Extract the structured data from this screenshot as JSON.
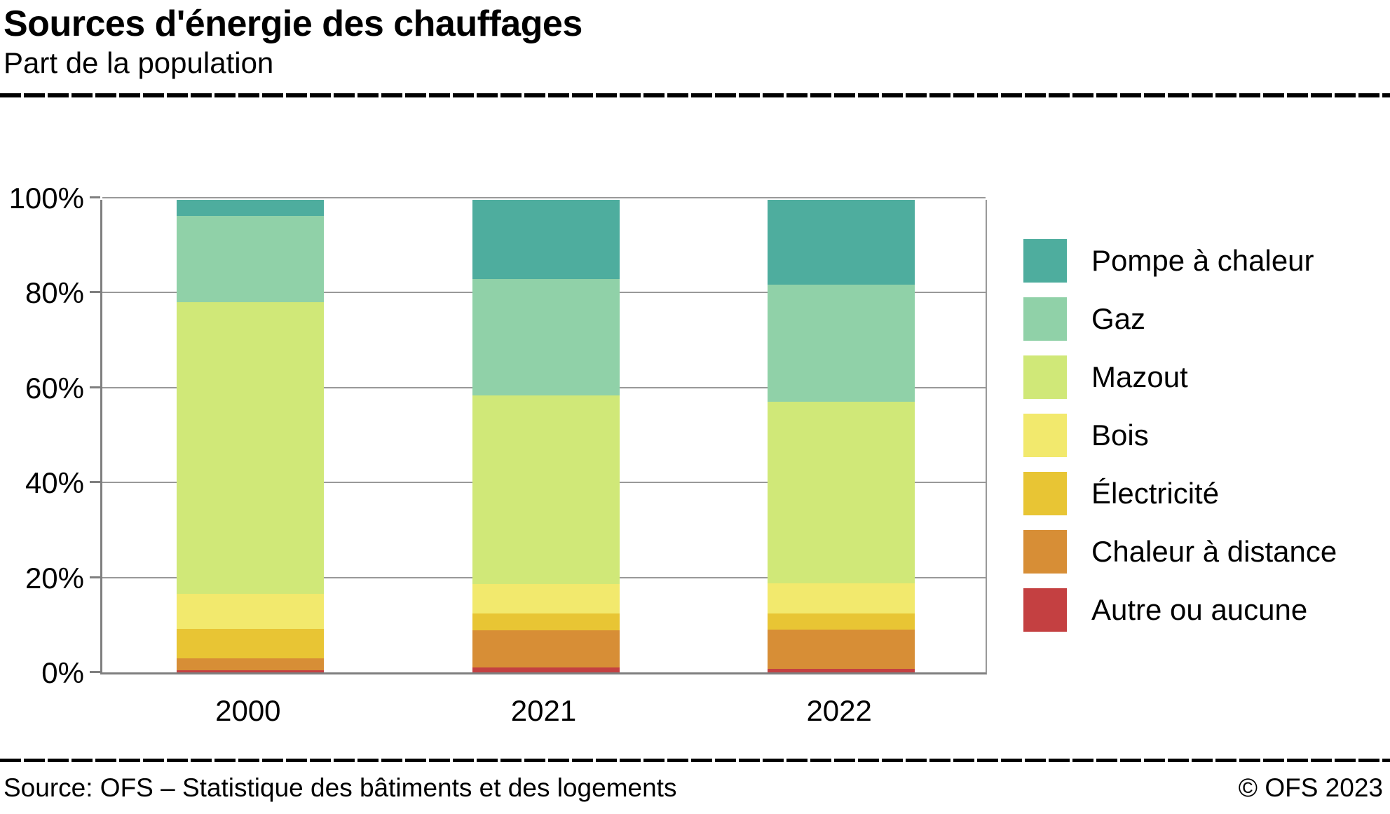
{
  "header": {
    "title": "Sources d'énergie des chauffages",
    "subtitle": "Part de la population"
  },
  "chart_data": {
    "type": "bar",
    "stacked": true,
    "title": "Sources d'énergie des chauffages",
    "subtitle": "Part de la population",
    "categories": [
      "2000",
      "2021",
      "2022"
    ],
    "series": [
      {
        "name": "Pompe à chaleur",
        "color": "#4ead9e",
        "values": [
          3.4,
          16.7,
          17.9
        ]
      },
      {
        "name": "Gaz",
        "color": "#90d1a8",
        "values": [
          18.3,
          24.7,
          24.8
        ]
      },
      {
        "name": "Mazout",
        "color": "#d0e878",
        "values": [
          61.7,
          39.9,
          38.5
        ]
      },
      {
        "name": "Bois",
        "color": "#f2e96d",
        "values": [
          7.4,
          6.3,
          6.3
        ]
      },
      {
        "name": "Électricité",
        "color": "#e8c534",
        "values": [
          6.2,
          3.5,
          3.4
        ]
      },
      {
        "name": "Chaleur à distance",
        "color": "#d78e36",
        "values": [
          2.5,
          7.9,
          8.4
        ]
      },
      {
        "name": "Autre ou aucune",
        "color": "#c44041",
        "values": [
          0.5,
          1.0,
          0.7
        ]
      }
    ],
    "xlabel": "",
    "ylabel": "",
    "ylim": [
      0,
      100
    ],
    "yticks": [
      "0%",
      "20%",
      "40%",
      "60%",
      "80%",
      "100%"
    ],
    "grid": true,
    "legend_position": "right",
    "colors": {
      "gridline": "#999999",
      "axis": "#7f7f7f",
      "text": "#000000"
    }
  },
  "footer": {
    "source": "Source: OFS – Statistique des bâtiments et des logements",
    "copyright": "© OFS 2023"
  }
}
